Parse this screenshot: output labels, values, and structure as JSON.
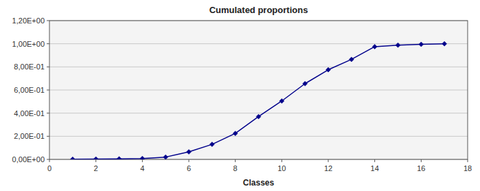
{
  "chart_data": {
    "type": "line",
    "title": "Cumulated proportions",
    "xlabel": "Classes",
    "x": [
      1,
      2,
      3,
      4,
      5,
      6,
      7,
      8,
      9,
      10,
      11,
      12,
      13,
      14,
      15,
      16,
      17
    ],
    "values": [
      0.002,
      0.003,
      0.005,
      0.008,
      0.02,
      0.065,
      0.13,
      0.225,
      0.37,
      0.505,
      0.655,
      0.775,
      0.865,
      0.975,
      0.988,
      0.995,
      1.0
    ],
    "color": "#00008B",
    "marker": "diamond",
    "grid": true,
    "xlim": [
      0,
      18
    ],
    "xticks": [
      0,
      2,
      4,
      6,
      8,
      10,
      12,
      14,
      16,
      18
    ],
    "ylim": [
      0.0,
      1.2
    ],
    "yticks": [
      {
        "value": 0.0,
        "label": "0,00E+00"
      },
      {
        "value": 0.2,
        "label": "2,00E-01"
      },
      {
        "value": 0.4,
        "label": "4,00E-01"
      },
      {
        "value": 0.6,
        "label": "6,00E-01"
      },
      {
        "value": 0.8,
        "label": "8,00E-01"
      },
      {
        "value": 1.0,
        "label": "1,00E+00"
      },
      {
        "value": 1.2,
        "label": "1,20E+00"
      }
    ]
  }
}
